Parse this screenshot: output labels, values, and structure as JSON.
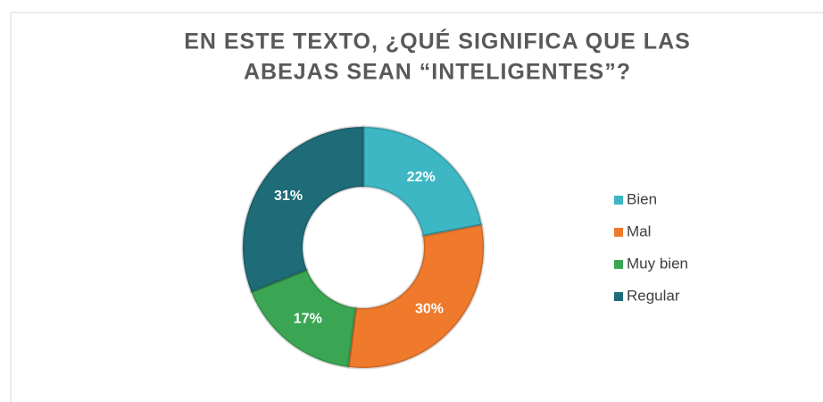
{
  "chart_data": {
    "type": "donut",
    "title": [
      "EN ESTE TEXTO, ¿QUÉ SIGNIFICA QUE LAS",
      "ABEJAS SEAN “INTELIGENTES”?"
    ],
    "categories": [
      "Bien",
      "Mal",
      "Muy bien",
      "Regular"
    ],
    "values": [
      22,
      30,
      17,
      31
    ],
    "value_labels": [
      "22%",
      "30%",
      "17%",
      "31%"
    ],
    "colors": [
      "#3db7c3",
      "#ef7a2b",
      "#3aa653",
      "#1d6c77"
    ],
    "legend": "right"
  }
}
